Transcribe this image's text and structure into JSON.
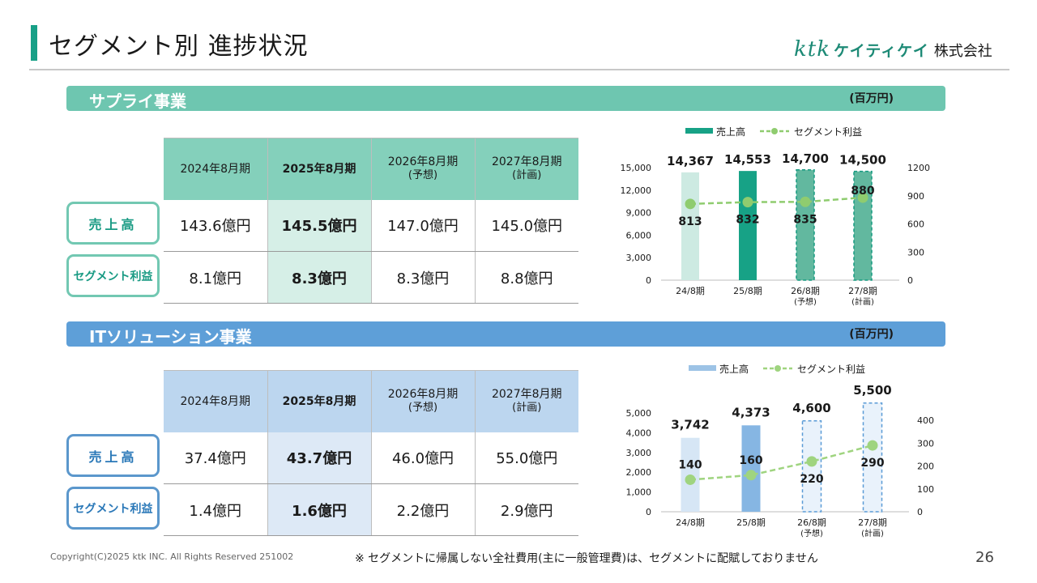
{
  "header": {
    "title": "セグメント別 進捗状況",
    "logo_mark": "ktk",
    "logo_kana": "ケイティケイ",
    "logo_corp": "株式会社"
  },
  "supply": {
    "section_title": "サプライ事業",
    "unit": "(百万円)",
    "columns": [
      {
        "line1": "2024年8月期",
        "line2": ""
      },
      {
        "line1": "2025年8月期",
        "line2": ""
      },
      {
        "line1": "2026年8月期",
        "line2": "(予想)"
      },
      {
        "line1": "2027年8月期",
        "line2": "(計画)"
      }
    ],
    "row_sales_label": "売上高",
    "row_profit_label": "セグメント利益",
    "sales": [
      "143.6億円",
      "145.5億円",
      "147.0億円",
      "145.0億円"
    ],
    "profit": [
      "8.1億円",
      "8.3億円",
      "8.3億円",
      "8.8億円"
    ]
  },
  "it": {
    "section_title": "ITソリューション事業",
    "unit": "(百万円)",
    "columns": [
      {
        "line1": "2024年8月期",
        "line2": ""
      },
      {
        "line1": "2025年8月期",
        "line2": ""
      },
      {
        "line1": "2026年8月期",
        "line2": "(予想)"
      },
      {
        "line1": "2027年8月期",
        "line2": "(計画)"
      }
    ],
    "row_sales_label": "売上高",
    "row_profit_label": "セグメント利益",
    "sales": [
      "37.4億円",
      "43.7億円",
      "46.0億円",
      "55.0億円"
    ],
    "profit": [
      "1.4億円",
      "1.6億円",
      "2.2億円",
      "2.9億円"
    ]
  },
  "chart_data": [
    {
      "type": "bar",
      "categories": [
        "24/8期",
        "25/8期",
        "26/8期",
        "27/8期"
      ],
      "category_sub": [
        "",
        "",
        "(予想)",
        "(計画)"
      ],
      "series": [
        {
          "name": "売上高",
          "type": "bar",
          "axis": "left",
          "values": [
            14367,
            14553,
            14700,
            14500
          ],
          "labels": [
            "14,367",
            "14,553",
            "14,700",
            "14,500"
          ]
        },
        {
          "name": "セグメント利益",
          "type": "line",
          "axis": "right",
          "values": [
            813,
            832,
            835,
            880
          ],
          "labels": [
            "813",
            "832",
            "835",
            "880"
          ]
        }
      ],
      "left_axis": {
        "ylim": [
          0,
          15000
        ],
        "ticks": [
          "0",
          "3,000",
          "6,000",
          "9,000",
          "12,000",
          "15,000"
        ],
        "tick_values": [
          0,
          3000,
          6000,
          9000,
          12000,
          15000
        ]
      },
      "right_axis": {
        "ylim": [
          0,
          1200
        ],
        "ticks": [
          "0",
          "300",
          "600",
          "900",
          "1200"
        ],
        "tick_values": [
          0,
          300,
          600,
          900,
          1200
        ]
      },
      "bar_styles": [
        "light",
        "solid",
        "dashed",
        "dashed"
      ],
      "colors": {
        "bar_light": "#cdeae2",
        "bar_solid": "#17a286",
        "bar_dashed_fill": "#62b89f",
        "bar_dashed_stroke": "#169a81",
        "line": "#8fcc6f",
        "legend_bar": "#17a286"
      },
      "legend_position": "top",
      "grid": false
    },
    {
      "type": "bar",
      "categories": [
        "24/8期",
        "25/8期",
        "26/8期",
        "27/8期"
      ],
      "category_sub": [
        "",
        "",
        "(予想)",
        "(計画)"
      ],
      "series": [
        {
          "name": "売上高",
          "type": "bar",
          "axis": "left",
          "values": [
            3742,
            4373,
            4600,
            5500
          ],
          "labels": [
            "3,742",
            "4,373",
            "4,600",
            "5,500"
          ]
        },
        {
          "name": "セグメント利益",
          "type": "line",
          "axis": "right",
          "values": [
            140,
            160,
            220,
            290
          ],
          "labels": [
            "140",
            "160",
            "220",
            "290"
          ]
        }
      ],
      "left_axis": {
        "ylim": [
          0,
          5000
        ],
        "ticks": [
          "0",
          "1,000",
          "2,000",
          "3,000",
          "4,000",
          "5,000"
        ],
        "tick_values": [
          0,
          1000,
          2000,
          3000,
          4000,
          5000
        ]
      },
      "right_axis": {
        "ylim": [
          0,
          400
        ],
        "ticks": [
          "0",
          "100",
          "200",
          "300",
          "400"
        ],
        "tick_values": [
          0,
          100,
          200,
          300,
          400
        ]
      },
      "bar_styles": [
        "light",
        "solid",
        "dashed",
        "dashed"
      ],
      "colors": {
        "bar_light": "#d6e6f5",
        "bar_solid": "#86b6e3",
        "bar_dashed_fill": "#e9f2fb",
        "bar_dashed_stroke": "#5a9bd6",
        "line": "#9fd47f",
        "legend_bar": "#9dc3e6"
      },
      "legend_position": "top",
      "grid": false
    }
  ],
  "footer": {
    "copyright": "Copyright(C)2025 ktk INC. All Rights Reserved 251002",
    "note": "※ セグメントに帰属しない全社費用(主に一般管理費)は、セグメントに配賦しておりません",
    "page_number": "26"
  }
}
